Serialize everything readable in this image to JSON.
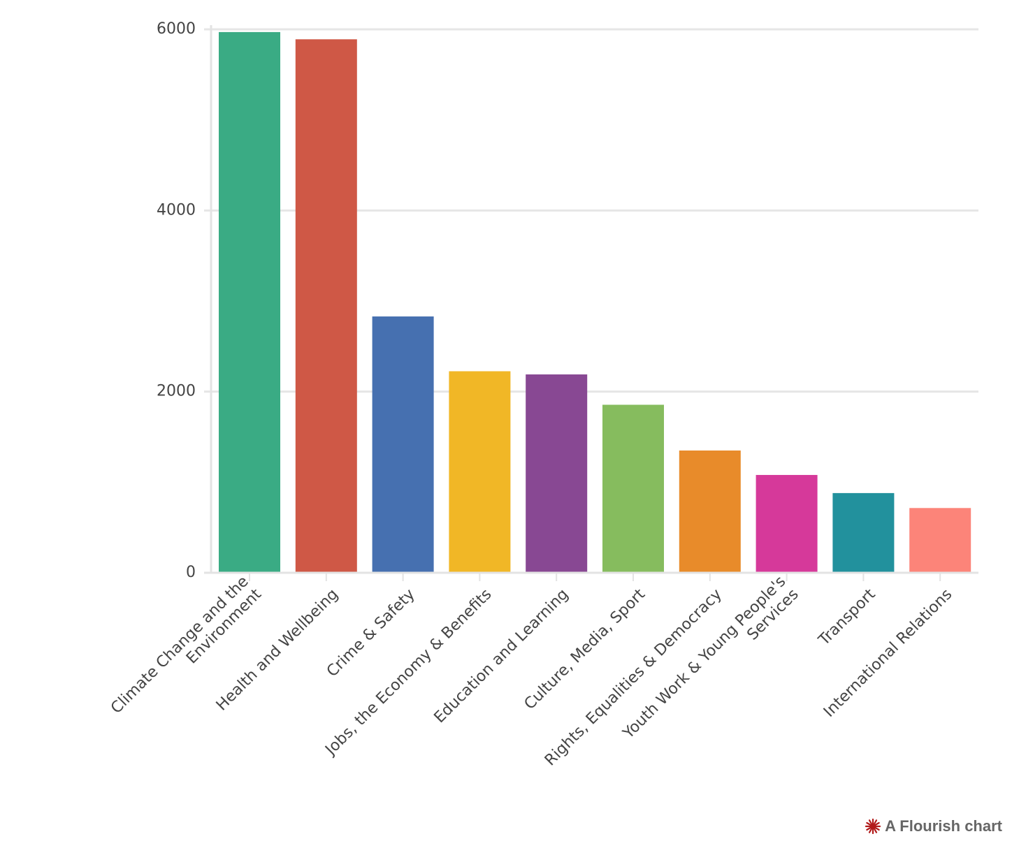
{
  "chart_data": {
    "type": "bar",
    "categories": [
      "Climate Change and the Environment",
      "Health and Wellbeing",
      "Crime & Safety",
      "Jobs, the Economy & Benefits",
      "Education and Learning",
      "Culture, Media, Sport",
      "Rights, Equalities & Democracy",
      "Youth Work & Young People's Services",
      "Transport",
      "International Relations"
    ],
    "category_label_lines": [
      [
        "Climate Change and the",
        "Environment"
      ],
      [
        "Health and Wellbeing"
      ],
      [
        "Crime & Safety"
      ],
      [
        "Jobs, the Economy & Benefits"
      ],
      [
        "Education and Learning"
      ],
      [
        "Culture, Media, Sport"
      ],
      [
        "Rights, Equalities & Democracy"
      ],
      [
        "Youth Work & Young People's",
        "Services"
      ],
      [
        "Transport"
      ],
      [
        "International Relations"
      ]
    ],
    "values": [
      5970,
      5890,
      2830,
      2225,
      2190,
      1855,
      1350,
      1080,
      880,
      715
    ],
    "colors": [
      "#3aab84",
      "#cf5846",
      "#4670b0",
      "#f1b726",
      "#884893",
      "#86bc5e",
      "#e88b2a",
      "#d6399a",
      "#22919d",
      "#fc8479"
    ],
    "title": "",
    "xlabel": "",
    "ylabel": "",
    "ylim": [
      0,
      6000
    ],
    "yticks": [
      0,
      2000,
      4000,
      6000
    ],
    "grid": true,
    "legend": "none"
  },
  "credit": {
    "text": "A Flourish chart",
    "icon": "flourish-star-icon",
    "icon_color": "#b21a1a"
  }
}
